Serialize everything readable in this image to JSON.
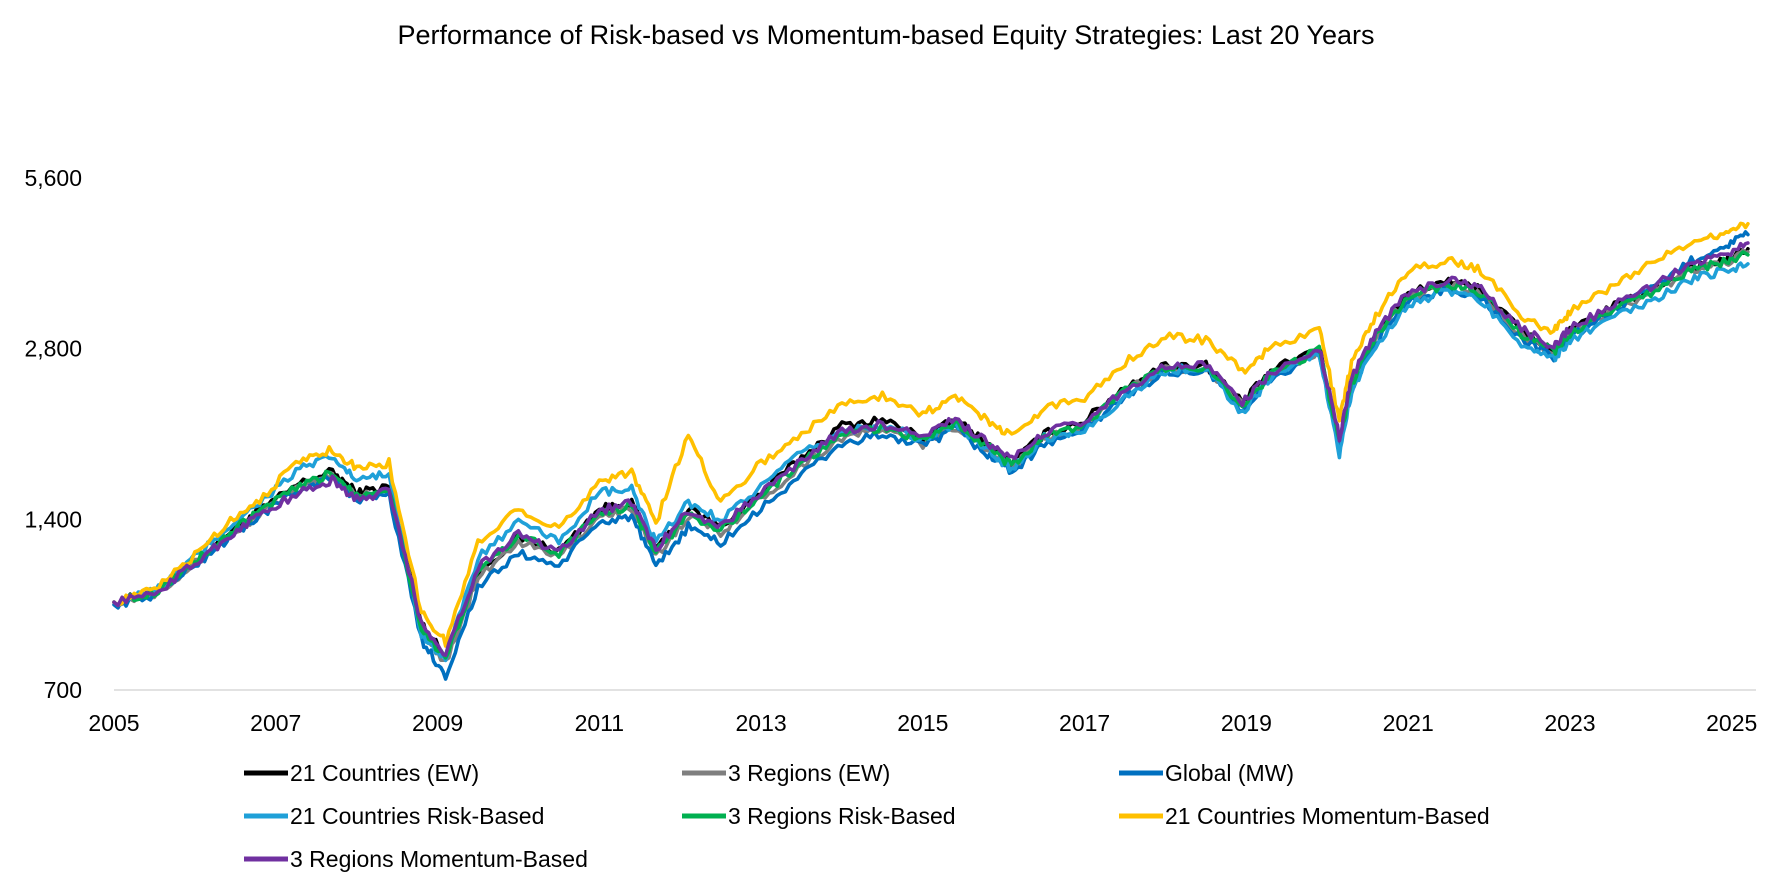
{
  "chart_data": {
    "type": "line",
    "title": "Performance of Risk-based vs Momentum-based Equity Strategies: Last 20 Years",
    "xlabel": "",
    "ylabel": "",
    "y_scale": "log",
    "ylim": [
      700,
      5600
    ],
    "xlim": [
      2005,
      2025.3
    ],
    "y_ticks": [
      700,
      1400,
      2800,
      5600
    ],
    "y_tick_labels": [
      "700",
      "1,400",
      "2,800",
      "5,600"
    ],
    "x_ticks": [
      2005,
      2007,
      2009,
      2011,
      2013,
      2015,
      2017,
      2019,
      2021,
      2023,
      2025
    ],
    "x_tick_labels": [
      "2005",
      "2007",
      "2009",
      "2011",
      "2013",
      "2015",
      "2017",
      "2019",
      "2021",
      "2023",
      "2025"
    ],
    "grid": "horizontal-baseline-only",
    "legend_position": "bottom",
    "x": [
      2005.0,
      2005.5,
      2006.0,
      2006.4,
      2006.8,
      2007.3,
      2007.7,
      2008.0,
      2008.4,
      2008.8,
      2009.1,
      2009.5,
      2010.0,
      2010.5,
      2011.0,
      2011.4,
      2011.7,
      2012.1,
      2012.5,
      2013.0,
      2013.5,
      2014.0,
      2014.5,
      2015.0,
      2015.4,
      2015.8,
      2016.1,
      2016.5,
      2017.0,
      2017.5,
      2018.0,
      2018.5,
      2018.95,
      2019.3,
      2019.9,
      2020.15,
      2020.3,
      2020.6,
      2021.0,
      2021.5,
      2021.9,
      2022.4,
      2022.8,
      2023.0,
      2023.5,
      2024.0,
      2024.5,
      2024.9,
      2025.2
    ],
    "series": [
      {
        "name": "21 Countries (EW)",
        "color": "#000000",
        "values": [
          1000,
          1040,
          1180,
          1320,
          1450,
          1620,
          1700,
          1560,
          1600,
          920,
          800,
          1130,
          1300,
          1230,
          1460,
          1500,
          1230,
          1460,
          1360,
          1560,
          1800,
          2050,
          2100,
          1950,
          2100,
          1900,
          1760,
          1980,
          2090,
          2400,
          2620,
          2620,
          2250,
          2550,
          2820,
          1920,
          2460,
          2980,
          3500,
          3700,
          3560,
          3000,
          2780,
          3000,
          3300,
          3550,
          3900,
          4000,
          4200
        ]
      },
      {
        "name": "3 Regions (EW)",
        "color": "#7f7f7f",
        "values": [
          1000,
          1035,
          1170,
          1300,
          1430,
          1590,
          1680,
          1540,
          1580,
          900,
          780,
          1100,
          1280,
          1200,
          1420,
          1460,
          1200,
          1420,
          1330,
          1520,
          1740,
          1950,
          2020,
          1900,
          2040,
          1860,
          1730,
          1940,
          2050,
          2350,
          2580,
          2580,
          2220,
          2500,
          2770,
          1900,
          2420,
          2930,
          3450,
          3640,
          3500,
          2960,
          2750,
          2960,
          3250,
          3500,
          3850,
          3960,
          4150
        ]
      },
      {
        "name": "Global (MW)",
        "color": "#0070c0",
        "values": [
          990,
          1030,
          1160,
          1290,
          1420,
          1580,
          1660,
          1520,
          1550,
          860,
          740,
          1060,
          1220,
          1160,
          1380,
          1420,
          1150,
          1360,
          1270,
          1460,
          1680,
          1900,
          1980,
          1880,
          2020,
          1820,
          1700,
          1900,
          2020,
          2300,
          2540,
          2560,
          2180,
          2470,
          2740,
          1880,
          2380,
          2880,
          3380,
          3580,
          3450,
          2900,
          2700,
          2930,
          3250,
          3550,
          4000,
          4250,
          4450
        ]
      },
      {
        "name": "21 Countries Risk-Based",
        "color": "#1fa0d8",
        "values": [
          1000,
          1045,
          1200,
          1350,
          1500,
          1720,
          1800,
          1640,
          1680,
          880,
          790,
          1200,
          1380,
          1280,
          1560,
          1580,
          1270,
          1500,
          1400,
          1600,
          1830,
          2000,
          2060,
          1930,
          2060,
          1850,
          1720,
          1950,
          2010,
          2300,
          2560,
          2600,
          2150,
          2500,
          2740,
          1820,
          2350,
          2850,
          3350,
          3550,
          3400,
          2870,
          2680,
          2900,
          3150,
          3400,
          3700,
          3850,
          3950
        ]
      },
      {
        "name": "3 Regions Risk-Based",
        "color": "#00b050",
        "values": [
          1000,
          1040,
          1180,
          1310,
          1450,
          1600,
          1690,
          1550,
          1590,
          900,
          790,
          1130,
          1310,
          1220,
          1440,
          1480,
          1220,
          1430,
          1340,
          1540,
          1760,
          1970,
          2040,
          1930,
          2070,
          1880,
          1740,
          1960,
          2060,
          2360,
          2590,
          2600,
          2230,
          2520,
          2790,
          1910,
          2430,
          2940,
          3460,
          3650,
          3510,
          2970,
          2760,
          2970,
          3260,
          3510,
          3860,
          3980,
          4100
        ]
      },
      {
        "name": "21 Countries Momentum-Based",
        "color": "#ffc000",
        "values": [
          1000,
          1050,
          1210,
          1380,
          1520,
          1780,
          1860,
          1720,
          1760,
          960,
          850,
          1270,
          1470,
          1340,
          1640,
          1700,
          1380,
          1980,
          1500,
          1760,
          1980,
          2230,
          2320,
          2150,
          2300,
          2100,
          1960,
          2200,
          2300,
          2650,
          2950,
          2900,
          2560,
          2800,
          3050,
          2090,
          2650,
          3200,
          3850,
          4000,
          3850,
          3200,
          3000,
          3250,
          3600,
          3950,
          4300,
          4500,
          4650
        ]
      },
      {
        "name": "3 Regions Momentum-Based",
        "color": "#7030a0",
        "values": [
          1000,
          1035,
          1170,
          1300,
          1430,
          1560,
          1640,
          1520,
          1570,
          920,
          810,
          1150,
          1320,
          1230,
          1450,
          1500,
          1240,
          1450,
          1360,
          1560,
          1780,
          2000,
          2060,
          1960,
          2100,
          1910,
          1780,
          1990,
          2080,
          2380,
          2600,
          2620,
          2250,
          2540,
          2810,
          1950,
          2480,
          3000,
          3520,
          3700,
          3560,
          3030,
          2820,
          3030,
          3320,
          3580,
          3950,
          4100,
          4300
        ]
      }
    ]
  }
}
